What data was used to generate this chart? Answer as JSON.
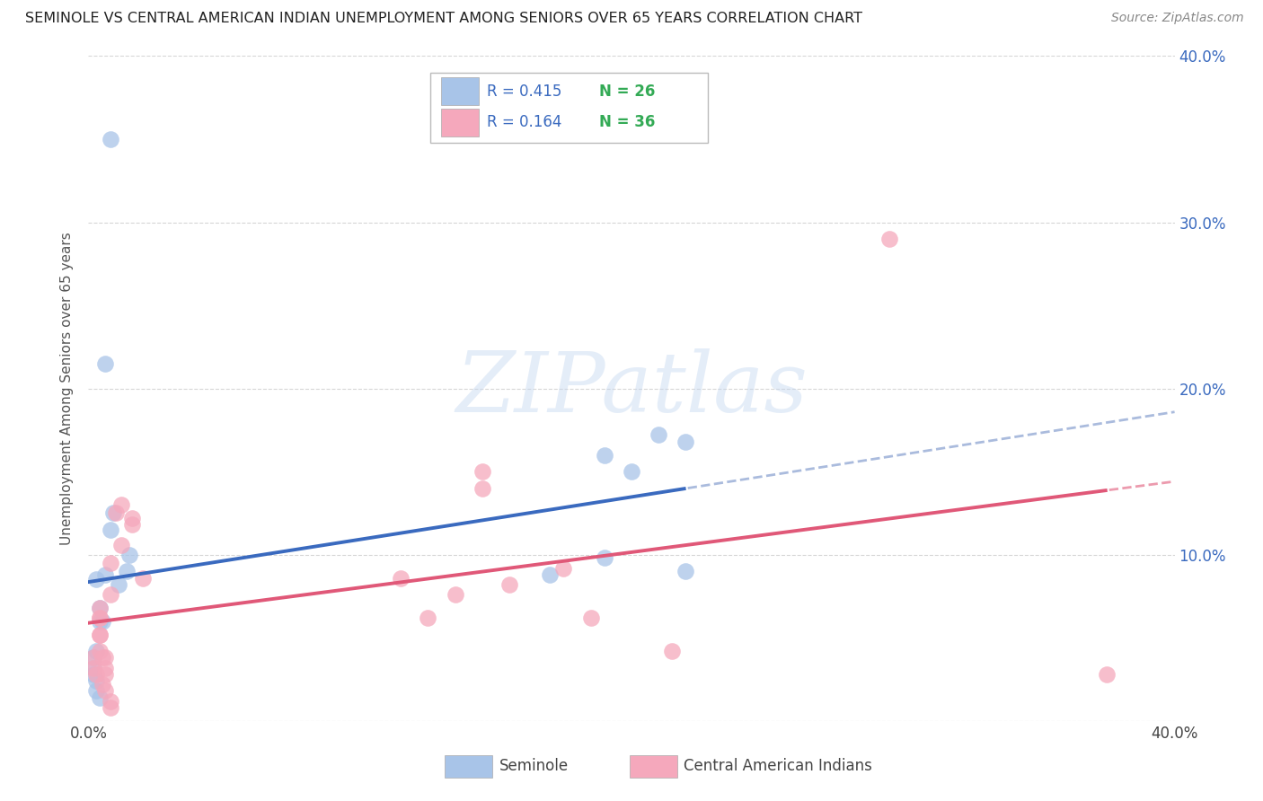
{
  "title": "SEMINOLE VS CENTRAL AMERICAN INDIAN UNEMPLOYMENT AMONG SENIORS OVER 65 YEARS CORRELATION CHART",
  "source": "Source: ZipAtlas.com",
  "ylabel": "Unemployment Among Seniors over 65 years",
  "legend_label1": "Seminole",
  "legend_label2": "Central American Indians",
  "r1": 0.415,
  "n1": 26,
  "r2": 0.164,
  "n2": 36,
  "xlim": [
    0.0,
    0.4
  ],
  "ylim": [
    0.0,
    0.4
  ],
  "color_blue": "#a8c4e8",
  "color_pink": "#f5a8bc",
  "color_blue_line": "#3a6abf",
  "color_pink_line": "#e05878",
  "color_blue_dash": "#aabbdd",
  "watermark_text": "ZIPatlas",
  "seminole_x": [
    0.008,
    0.008,
    0.003,
    0.004,
    0.005,
    0.006,
    0.009,
    0.004,
    0.003,
    0.002,
    0.002,
    0.002,
    0.003,
    0.003,
    0.004,
    0.011,
    0.014,
    0.015,
    0.17,
    0.19,
    0.2,
    0.21,
    0.22,
    0.22,
    0.19,
    0.006
  ],
  "seminole_y": [
    0.35,
    0.115,
    0.085,
    0.068,
    0.06,
    0.088,
    0.125,
    0.06,
    0.042,
    0.038,
    0.032,
    0.028,
    0.024,
    0.018,
    0.014,
    0.082,
    0.09,
    0.1,
    0.088,
    0.16,
    0.15,
    0.172,
    0.168,
    0.09,
    0.098,
    0.215
  ],
  "central_x": [
    0.004,
    0.004,
    0.008,
    0.008,
    0.01,
    0.012,
    0.012,
    0.004,
    0.004,
    0.002,
    0.002,
    0.003,
    0.005,
    0.006,
    0.008,
    0.008,
    0.016,
    0.016,
    0.02,
    0.135,
    0.155,
    0.145,
    0.145,
    0.125,
    0.175,
    0.185,
    0.215,
    0.295,
    0.006,
    0.006,
    0.004,
    0.004,
    0.005,
    0.006,
    0.375,
    0.115
  ],
  "central_y": [
    0.068,
    0.062,
    0.095,
    0.076,
    0.125,
    0.13,
    0.106,
    0.052,
    0.042,
    0.038,
    0.032,
    0.028,
    0.022,
    0.018,
    0.008,
    0.012,
    0.118,
    0.122,
    0.086,
    0.076,
    0.082,
    0.15,
    0.14,
    0.062,
    0.092,
    0.062,
    0.042,
    0.29,
    0.038,
    0.028,
    0.062,
    0.052,
    0.038,
    0.032,
    0.028,
    0.086
  ]
}
